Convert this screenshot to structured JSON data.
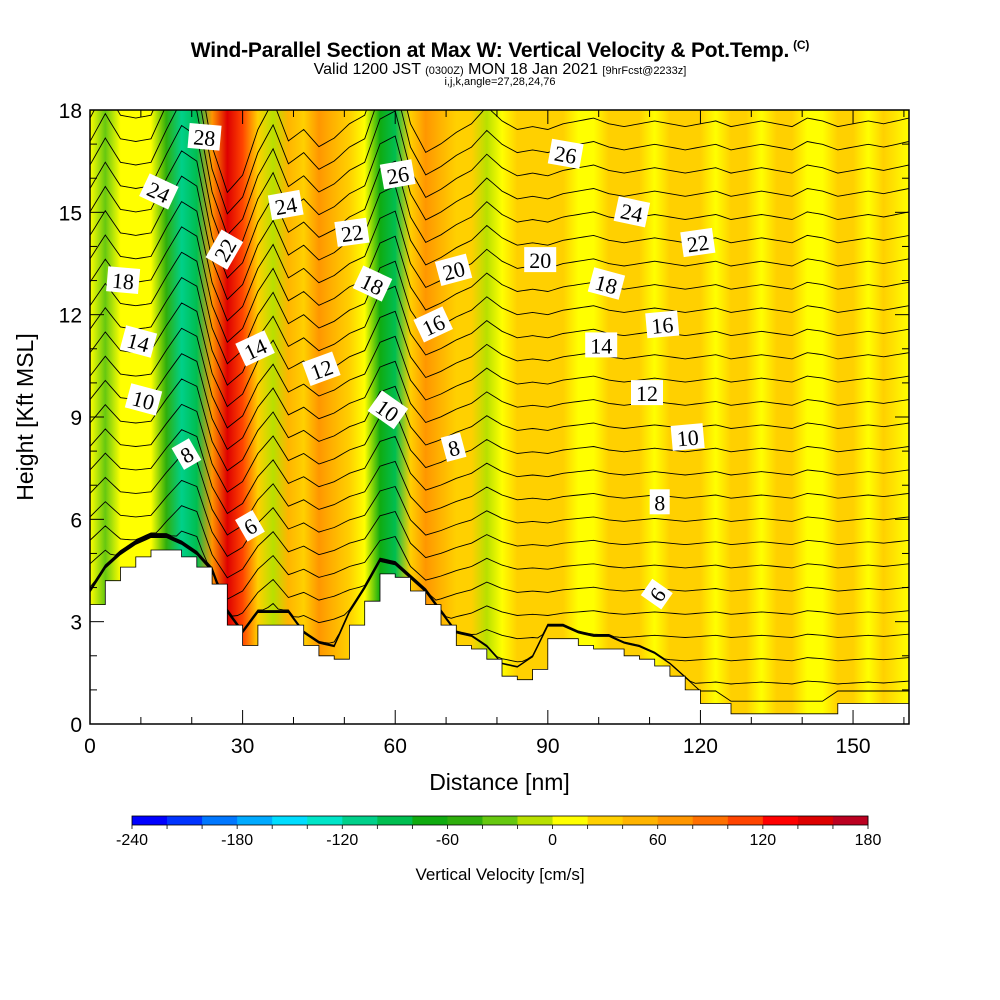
{
  "header": {
    "title": "Wind-Parallel Section at Max W: Vertical Velocity & Pot.Temp.",
    "copyright": "(C)",
    "valid_prefix": "Valid 1200 JST",
    "valid_utc": "(0300Z)",
    "valid_date": "MON 18 Jan 2021",
    "forecast": "[9hrFcst@2233z]",
    "indices": "i,j,k,angle=27,28,24,76"
  },
  "chart_data": {
    "type": "heatmap",
    "xlabel": "Distance [nm]",
    "ylabel": "Height [Kft MSL]",
    "xlim": [
      0,
      161
    ],
    "ylim": [
      0,
      18
    ],
    "x_ticks": [
      0,
      30,
      60,
      90,
      120,
      150
    ],
    "y_ticks": [
      0,
      3,
      6,
      9,
      12,
      15,
      18
    ],
    "velocity_columns": {
      "x": [
        0,
        3,
        6,
        9,
        12,
        15,
        18,
        21,
        24,
        27,
        30,
        33,
        36,
        39,
        42,
        45,
        48,
        51,
        54,
        57,
        60,
        63,
        66,
        69,
        72,
        75,
        78,
        81,
        84,
        87,
        90,
        93,
        96,
        99,
        102,
        105,
        108,
        111,
        114,
        117,
        120,
        123,
        126,
        129,
        132,
        135,
        138,
        141,
        144,
        147,
        150,
        153,
        156,
        161
      ],
      "w": [
        10,
        -40,
        5,
        10,
        5,
        -55,
        -110,
        -90,
        60,
        140,
        110,
        30,
        -20,
        50,
        30,
        60,
        45,
        20,
        5,
        -75,
        -90,
        20,
        70,
        55,
        35,
        20,
        -10,
        15,
        30,
        25,
        30,
        20,
        15,
        10,
        20,
        25,
        20,
        15,
        20,
        25,
        20,
        15,
        25,
        20,
        15,
        20,
        25,
        10,
        15,
        25,
        20,
        15,
        20,
        10
      ]
    },
    "terrain": {
      "x": [
        0,
        3,
        6,
        9,
        12,
        15,
        18,
        21,
        24,
        27,
        30,
        33,
        36,
        39,
        42,
        45,
        48,
        51,
        54,
        57,
        60,
        63,
        66,
        69,
        72,
        75,
        78,
        81,
        84,
        87,
        90,
        93,
        96,
        99,
        102,
        105,
        108,
        111,
        114,
        117,
        120,
        123,
        126,
        129,
        132,
        135,
        138,
        141,
        144,
        147,
        150,
        153,
        156,
        161
      ],
      "height": [
        3.5,
        4.2,
        4.6,
        4.9,
        5.1,
        5.1,
        4.9,
        4.6,
        4.1,
        2.9,
        2.3,
        2.9,
        2.9,
        2.9,
        2.3,
        2.0,
        1.9,
        2.9,
        3.6,
        4.4,
        4.3,
        3.9,
        3.5,
        2.9,
        2.3,
        2.2,
        1.9,
        1.4,
        1.3,
        1.6,
        2.5,
        2.5,
        2.3,
        2.2,
        2.2,
        2.0,
        1.9,
        1.7,
        1.4,
        1.0,
        0.6,
        0.6,
        0.3,
        0.3,
        0.3,
        0.3,
        0.3,
        0.3,
        0.3,
        0.6,
        0.6,
        0.6,
        0.6,
        0.6
      ]
    },
    "theta_levels": [
      6,
      8,
      10,
      12,
      14,
      16,
      18,
      20,
      22,
      24,
      26,
      28
    ],
    "contour_labels": [
      {
        "text": "28",
        "x": 22.5,
        "y": 17.2,
        "angle": 5
      },
      {
        "text": "24",
        "x": 13.5,
        "y": 15.6,
        "angle": 25
      },
      {
        "text": "24",
        "x": 38.5,
        "y": 15.2,
        "angle": -10
      },
      {
        "text": "26",
        "x": 60.5,
        "y": 16.1,
        "angle": -10
      },
      {
        "text": "26",
        "x": 93.5,
        "y": 16.7,
        "angle": 10
      },
      {
        "text": "24",
        "x": 106.5,
        "y": 15.0,
        "angle": 12
      },
      {
        "text": "22",
        "x": 51.5,
        "y": 14.4,
        "angle": -8
      },
      {
        "text": "22",
        "x": 119.5,
        "y": 14.1,
        "angle": -8
      },
      {
        "text": "22",
        "x": 26.5,
        "y": 13.9,
        "angle": -60
      },
      {
        "text": "20",
        "x": 71.5,
        "y": 13.3,
        "angle": -15
      },
      {
        "text": "20",
        "x": 88.5,
        "y": 13.6,
        "angle": 0
      },
      {
        "text": "18",
        "x": 6.5,
        "y": 13.0,
        "angle": 5
      },
      {
        "text": "18",
        "x": 55.5,
        "y": 12.9,
        "angle": 25
      },
      {
        "text": "18",
        "x": 101.5,
        "y": 12.9,
        "angle": 15
      },
      {
        "text": "16",
        "x": 67.5,
        "y": 11.7,
        "angle": -25
      },
      {
        "text": "16",
        "x": 112.5,
        "y": 11.7,
        "angle": -5
      },
      {
        "text": "14",
        "x": 9.5,
        "y": 11.2,
        "angle": 15
      },
      {
        "text": "14",
        "x": 32.5,
        "y": 11.0,
        "angle": -25
      },
      {
        "text": "14",
        "x": 100.5,
        "y": 11.1,
        "angle": 0
      },
      {
        "text": "12",
        "x": 45.5,
        "y": 10.4,
        "angle": -20
      },
      {
        "text": "12",
        "x": 109.5,
        "y": 9.7,
        "angle": 0
      },
      {
        "text": "10",
        "x": 10.5,
        "y": 9.5,
        "angle": 15
      },
      {
        "text": "10",
        "x": 58.5,
        "y": 9.2,
        "angle": 35
      },
      {
        "text": "10",
        "x": 117.5,
        "y": 8.4,
        "angle": -5
      },
      {
        "text": "8",
        "x": 19.0,
        "y": 7.9,
        "angle": -30
      },
      {
        "text": "8",
        "x": 71.5,
        "y": 8.1,
        "angle": -15
      },
      {
        "text": "8",
        "x": 112.0,
        "y": 6.5,
        "angle": 0
      },
      {
        "text": "6",
        "x": 31.5,
        "y": 5.8,
        "angle": -30
      },
      {
        "text": "6",
        "x": 111.5,
        "y": 3.8,
        "angle": -55
      }
    ],
    "colorbar": {
      "label": "Vertical Velocity [cm/s]",
      "min": -240,
      "max": 180,
      "step": 20,
      "tick_values": [
        -240,
        -180,
        -120,
        -60,
        0,
        60,
        120,
        180
      ],
      "tick_labels": [
        "-240",
        "-180",
        "-120",
        "-60",
        "0",
        "60",
        "120",
        "180"
      ],
      "colors": [
        "#0000ff",
        "#0033ff",
        "#0077ff",
        "#00aaff",
        "#00ddff",
        "#00e5c8",
        "#00d08a",
        "#00be50",
        "#10ab10",
        "#2eae0c",
        "#66c810",
        "#b8e000",
        "#ffff00",
        "#ffd000",
        "#ffb400",
        "#ff9600",
        "#ff7000",
        "#ff4400",
        "#ff0000",
        "#dd0000",
        "#bb0020",
        "#990050",
        "#7a0070",
        "#5a0090"
      ]
    }
  }
}
